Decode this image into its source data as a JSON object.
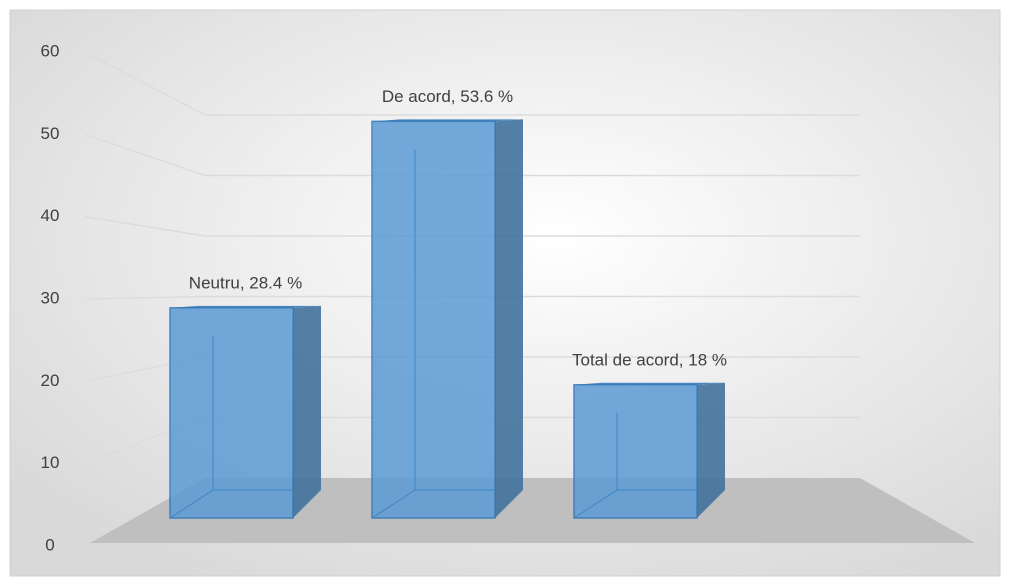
{
  "chart_data": {
    "type": "bar3d",
    "values": [
      28.4,
      53.6,
      18
    ],
    "value_labels": [
      "Neutru, 28.4 %",
      "De acord, 53.6 %",
      "Total de acord, 18 %"
    ],
    "color": "#5b9bd5",
    "ylim": [
      0,
      60
    ],
    "yticks": [
      0,
      10,
      20,
      30,
      40,
      50,
      60
    ],
    "grid": true
  }
}
